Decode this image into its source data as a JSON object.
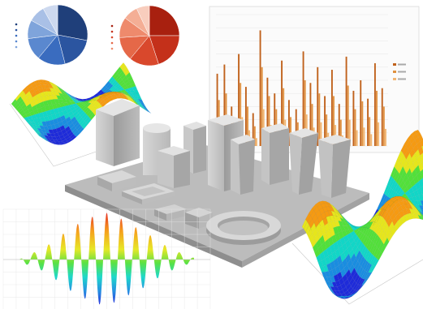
{
  "scene": {
    "elements": [
      "blue-pie-chart",
      "red-pie-chart",
      "orange-bar-chart",
      "rainbow-3d-surface-left",
      "3d-city-model",
      "rainbow-waveform",
      "rainbow-3d-surface-right"
    ]
  },
  "palette": {
    "background": "#ffffff",
    "blue_pie": [
      "#1f3f7a",
      "#2b55a0",
      "#3a6cbf",
      "#5a88cf",
      "#7fa4db",
      "#a9c0e6",
      "#cdd9ef"
    ],
    "red_pie": [
      "#a8200f",
      "#c4301a",
      "#d9482c",
      "#e56848",
      "#ee8a6c",
      "#f4ae95",
      "#f8cdbd"
    ],
    "bars": [
      "#c0621c",
      "#e0913f",
      "#f2b673"
    ],
    "rainbow": [
      "#1e2bd9",
      "#1a8de0",
      "#12d6c7",
      "#52e03a",
      "#e6e61c",
      "#f59a12",
      "#e5241a"
    ],
    "city_gray": [
      "#e2e2e2",
      "#c4c4c4",
      "#a6a6a6",
      "#8a8a8a"
    ]
  },
  "chart_data": [
    {
      "type": "pie",
      "slices": [
        28,
        18,
        15,
        12,
        10,
        9,
        8
      ]
    },
    {
      "type": "pie",
      "slices": [
        25,
        20,
        16,
        13,
        11,
        8,
        7
      ]
    },
    {
      "type": "bar",
      "series": [
        {
          "values": [
            55,
            62,
            30,
            70,
            45,
            25,
            88,
            52,
            40,
            65,
            35,
            28,
            72,
            48,
            60,
            38,
            58,
            32,
            68,
            42,
            50,
            36,
            63,
            44
          ]
        },
        {
          "values": [
            35,
            40,
            20,
            48,
            30,
            15,
            60,
            38,
            28,
            44,
            22,
            18,
            50,
            32,
            40,
            24,
            38,
            20,
            46,
            28,
            34,
            22,
            42,
            30
          ]
        },
        {
          "values": [
            15,
            18,
            8,
            22,
            12,
            6,
            28,
            16,
            12,
            20,
            9,
            8,
            24,
            14,
            18,
            10,
            16,
            8,
            20,
            12,
            14,
            9,
            18,
            13
          ]
        }
      ],
      "ylim": [
        0,
        100
      ],
      "grid": true
    },
    {
      "type": "line",
      "series": [
        {
          "values": [
            0,
            1.5,
            -2,
            3,
            -4,
            5.5,
            -7,
            8.5,
            -10,
            11,
            -12,
            13,
            -13.5,
            14,
            -13,
            12.5,
            -11,
            10,
            -9,
            8,
            -6.5,
            5,
            -4,
            3,
            -2,
            1.5,
            -0.5
          ]
        }
      ],
      "ylim": [
        -15,
        15
      ],
      "grid": true
    }
  ]
}
